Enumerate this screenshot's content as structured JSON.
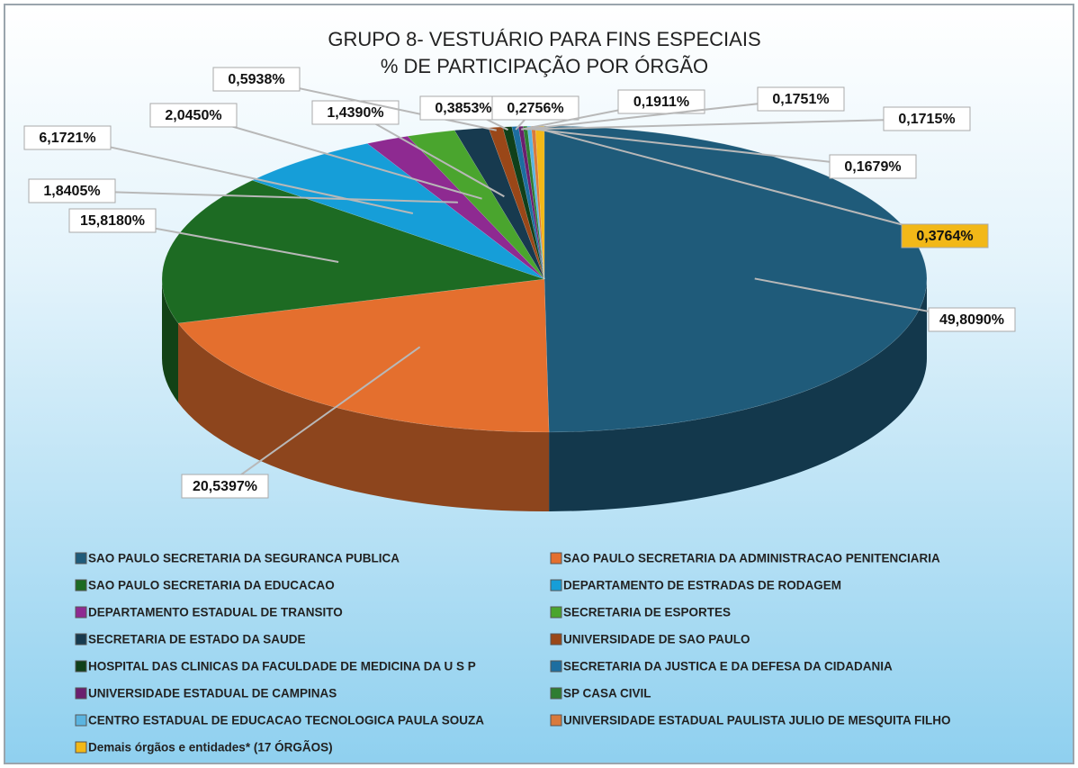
{
  "chart_data": {
    "type": "pie",
    "title": "GRUPO 8- VESTUÁRIO PARA FINS ESPECIAIS",
    "subtitle": "% DE PARTICIPAÇÃO  POR ÓRGÃO",
    "categories": [
      "SAO PAULO SECRETARIA DA SEGURANCA PUBLICA",
      "SAO PAULO SECRETARIA DA ADMINISTRACAO PENITENCIARIA",
      "SAO PAULO SECRETARIA DA EDUCACAO",
      "DEPARTAMENTO DE ESTRADAS DE RODAGEM",
      "DEPARTAMENTO ESTADUAL DE TRANSITO",
      "SECRETARIA DE ESPORTES",
      "SECRETARIA DE ESTADO DA SAUDE",
      "UNIVERSIDADE DE SAO PAULO",
      "HOSPITAL DAS CLINICAS DA FACULDADE DE MEDICINA DA U S P",
      "SECRETARIA DA JUSTICA E DA DEFESA DA CIDADANIA",
      "UNIVERSIDADE ESTADUAL DE CAMPINAS",
      "SP CASA CIVIL",
      "CENTRO ESTADUAL DE EDUCACAO TECNOLOGICA PAULA SOUZA",
      "UNIVERSIDADE ESTADUAL PAULISTA JULIO DE MESQUITA FILHO",
      "Demais órgãos e entidades* (17 ÓRGÃOS)"
    ],
    "values": [
      49.809,
      20.5397,
      15.818,
      6.1721,
      1.8405,
      2.045,
      1.439,
      0.5938,
      0.3853,
      0.2756,
      0.1911,
      0.1751,
      0.1715,
      0.1679,
      0.3764
    ],
    "value_labels": [
      "49,8090%",
      "20,5397%",
      "15,8180%",
      "6,1721%",
      "1,8405%",
      "2,0450%",
      "1,4390%",
      "0,5938%",
      "0,3853%",
      "0,2756%",
      "0,1911%",
      "0,1751%",
      "0,1715%",
      "0,1679%",
      "0,3764%"
    ],
    "colors": [
      "#1f5b7a",
      "#e46f2e",
      "#1d6b23",
      "#169ed8",
      "#8e2a91",
      "#4aa52e",
      "#173a4f",
      "#9a4718",
      "#10401a",
      "#1d6ea0",
      "#6b1f6e",
      "#2e7d32",
      "#5bb4e0",
      "#d97a3c",
      "#f2b818"
    ],
    "legend": "bottom"
  }
}
